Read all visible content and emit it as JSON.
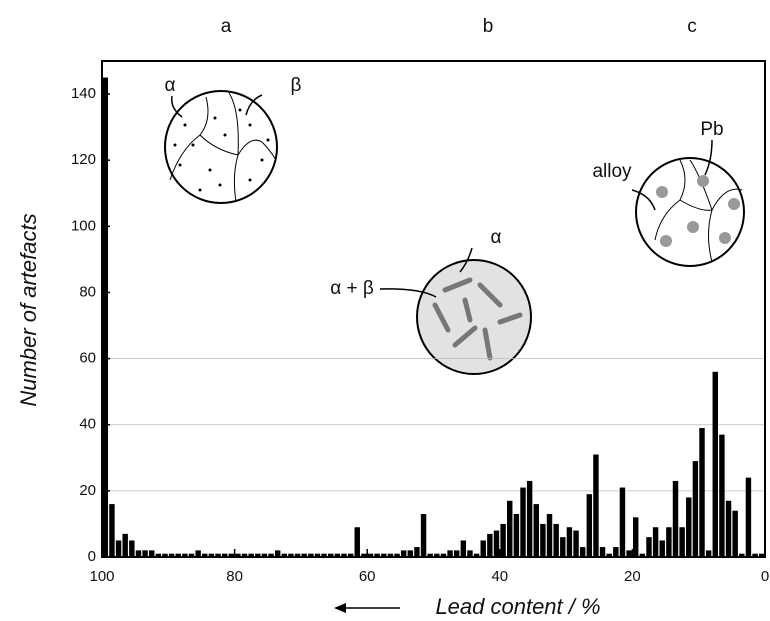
{
  "chart_data": {
    "type": "histogram",
    "x_label": "Lead content / %",
    "y_label": "Number of artefacts",
    "annotations": [
      "a",
      "b",
      "c"
    ],
    "inset_labels": [
      "α",
      "β",
      "α + β",
      "α",
      "alloy",
      "Pb"
    ],
    "color": "#000000",
    "xlim": [
      100,
      0
    ],
    "xticks": [
      100,
      80,
      60,
      40,
      20,
      0
    ],
    "ylim": [
      0,
      150
    ],
    "yticks": [
      0,
      20,
      40,
      60,
      80,
      100,
      120,
      140
    ],
    "gridlines": [
      20,
      40,
      60
    ],
    "bins": [
      100,
      99,
      98,
      97,
      96,
      95,
      94,
      93,
      92,
      91,
      90,
      89,
      88,
      87,
      86,
      85,
      84,
      83,
      82,
      81,
      80,
      79,
      78,
      77,
      76,
      75,
      74,
      73,
      72,
      71,
      70,
      69,
      68,
      67,
      66,
      65,
      64,
      63,
      62,
      61,
      60,
      59,
      58,
      57,
      56,
      55,
      54,
      53,
      52,
      51,
      50,
      49,
      48,
      47,
      46,
      45,
      44,
      43,
      42,
      41,
      40,
      39,
      38,
      37,
      36,
      35,
      34,
      33,
      32,
      31,
      30,
      29,
      28,
      27,
      26,
      25,
      24,
      23,
      22,
      21,
      20,
      19,
      18,
      17,
      16,
      15,
      14,
      13,
      12,
      11,
      10,
      9,
      8,
      7,
      6,
      5,
      4,
      3,
      2,
      1,
      0
    ],
    "counts": [
      145,
      16,
      5,
      7,
      5,
      2,
      2,
      2,
      1,
      1,
      1,
      1,
      1,
      1,
      2,
      1,
      1,
      1,
      1,
      1,
      1,
      1,
      1,
      1,
      1,
      1,
      2,
      1,
      1,
      1,
      1,
      1,
      1,
      1,
      1,
      1,
      1,
      1,
      9,
      1,
      1,
      1,
      1,
      1,
      1,
      2,
      2,
      3,
      13,
      1,
      1,
      1,
      2,
      2,
      5,
      2,
      1,
      5,
      7,
      8,
      10,
      17,
      13,
      21,
      23,
      16,
      10,
      13,
      10,
      6,
      9,
      8,
      3,
      19,
      31,
      3,
      1,
      3,
      21,
      2,
      12,
      1,
      6,
      9,
      5,
      9,
      23,
      9,
      18,
      29,
      39,
      2,
      56,
      37,
      17,
      14,
      1,
      24,
      1,
      1
    ]
  }
}
